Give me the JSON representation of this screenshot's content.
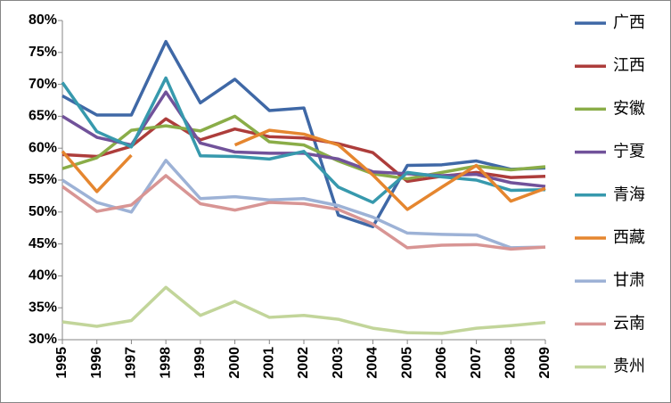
{
  "chart_data": {
    "type": "line",
    "categories": [
      "1995",
      "1996",
      "1997",
      "1998",
      "1999",
      "2000",
      "2001",
      "2002",
      "2003",
      "2004",
      "2005",
      "2006",
      "2007",
      "2008",
      "2009"
    ],
    "ylim": [
      30,
      80
    ],
    "yticks": [
      {
        "value": 30,
        "label": "30%"
      },
      {
        "value": 35,
        "label": "35%"
      },
      {
        "value": 40,
        "label": "40%"
      },
      {
        "value": 45,
        "label": "45%"
      },
      {
        "value": 50,
        "label": "50%"
      },
      {
        "value": 55,
        "label": "55%"
      },
      {
        "value": 60,
        "label": "60%"
      },
      {
        "value": 65,
        "label": "65%"
      },
      {
        "value": 70,
        "label": "70%"
      },
      {
        "value": 75,
        "label": "75%"
      },
      {
        "value": 80,
        "label": "80%"
      }
    ],
    "grid": false,
    "legend": "right",
    "series": [
      {
        "name": "广西",
        "color": "#3f68a6",
        "values": [
          68.2,
          65.2,
          65.2,
          76.7,
          67.1,
          70.8,
          65.9,
          66.3,
          49.5,
          47.7,
          57.3,
          57.4,
          58.0,
          56.7,
          56.9
        ]
      },
      {
        "name": "江西",
        "color": "#ad3d3b",
        "values": [
          59.0,
          58.7,
          60.3,
          64.6,
          61.3,
          63.0,
          61.8,
          61.6,
          60.7,
          59.3,
          54.8,
          55.6,
          56.2,
          55.4,
          55.6
        ]
      },
      {
        "name": "安徽",
        "color": "#8aad48",
        "values": [
          56.8,
          58.5,
          62.8,
          63.5,
          62.7,
          65.0,
          61.0,
          60.5,
          58.0,
          56.0,
          55.2,
          56.2,
          57.2,
          56.6,
          57.1
        ]
      },
      {
        "name": "宁夏",
        "color": "#71529a",
        "values": [
          65.0,
          61.7,
          60.5,
          68.8,
          60.8,
          59.4,
          59.2,
          59.2,
          58.3,
          56.3,
          56.0,
          55.7,
          55.9,
          54.6,
          54.0
        ]
      },
      {
        "name": "青海",
        "color": "#3799ad",
        "values": [
          70.3,
          62.6,
          60.2,
          71.0,
          58.8,
          58.7,
          58.3,
          59.5,
          53.9,
          51.5,
          56.2,
          55.5,
          55.0,
          53.4,
          53.5
        ]
      },
      {
        "name": "西藏",
        "color": "#e5862f",
        "values": [
          59.5,
          53.2,
          58.9,
          null,
          null,
          60.5,
          62.8,
          62.2,
          60.5,
          55.8,
          50.4,
          53.9,
          57.3,
          51.7,
          53.7
        ]
      },
      {
        "name": "甘肃",
        "color": "#9db2d6",
        "values": [
          55.0,
          51.5,
          50.0,
          58.1,
          52.1,
          52.4,
          51.9,
          52.1,
          51.0,
          49.2,
          46.7,
          46.5,
          46.4,
          44.4,
          44.5
        ]
      },
      {
        "name": "云南",
        "color": "#d89594",
        "values": [
          54.0,
          50.1,
          51.1,
          55.7,
          51.3,
          50.3,
          51.5,
          51.3,
          50.4,
          48.1,
          44.4,
          44.8,
          44.9,
          44.2,
          44.5
        ]
      },
      {
        "name": "贵州",
        "color": "#c2d59a",
        "values": [
          32.8,
          32.1,
          33.0,
          38.2,
          33.8,
          36.0,
          33.5,
          33.8,
          33.2,
          31.8,
          31.1,
          31.0,
          31.8,
          32.2,
          32.7
        ]
      }
    ]
  }
}
